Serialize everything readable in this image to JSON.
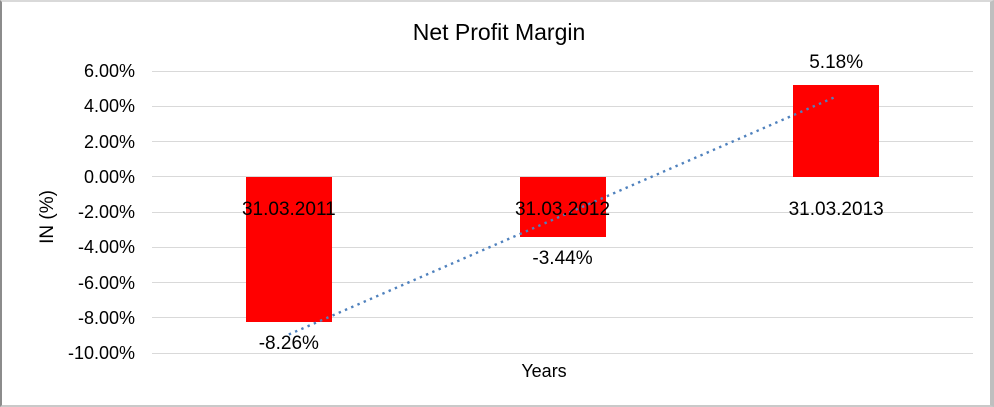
{
  "frame": {
    "background": "#ffffff"
  },
  "chart_data": {
    "type": "bar",
    "title": "Net Profit Margin",
    "xlabel": "Years",
    "ylabel": "IN (%)",
    "categories": [
      "31.03.2011",
      "31.03.2012",
      "31.03.2013"
    ],
    "values": [
      -8.26,
      -3.44,
      5.18
    ],
    "value_labels": [
      "-8.26%",
      "-3.44%",
      "5.18%"
    ],
    "ylim": [
      -10,
      6
    ],
    "ytick_step": 2,
    "ytick_labels": [
      "6.00%",
      "4.00%",
      "2.00%",
      "0.00%",
      "-2.00%",
      "-4.00%",
      "-6.00%",
      "-8.00%",
      "-10.00%"
    ],
    "grid": true,
    "legend": "none",
    "bar_color": "#ff0000",
    "gridline_color": "#d9d9d9",
    "text_color": "#000000",
    "trendline": {
      "type": "linear",
      "style": "dotted",
      "color": "#4f81bd",
      "start_value": -8.95,
      "end_value": 4.55
    }
  }
}
